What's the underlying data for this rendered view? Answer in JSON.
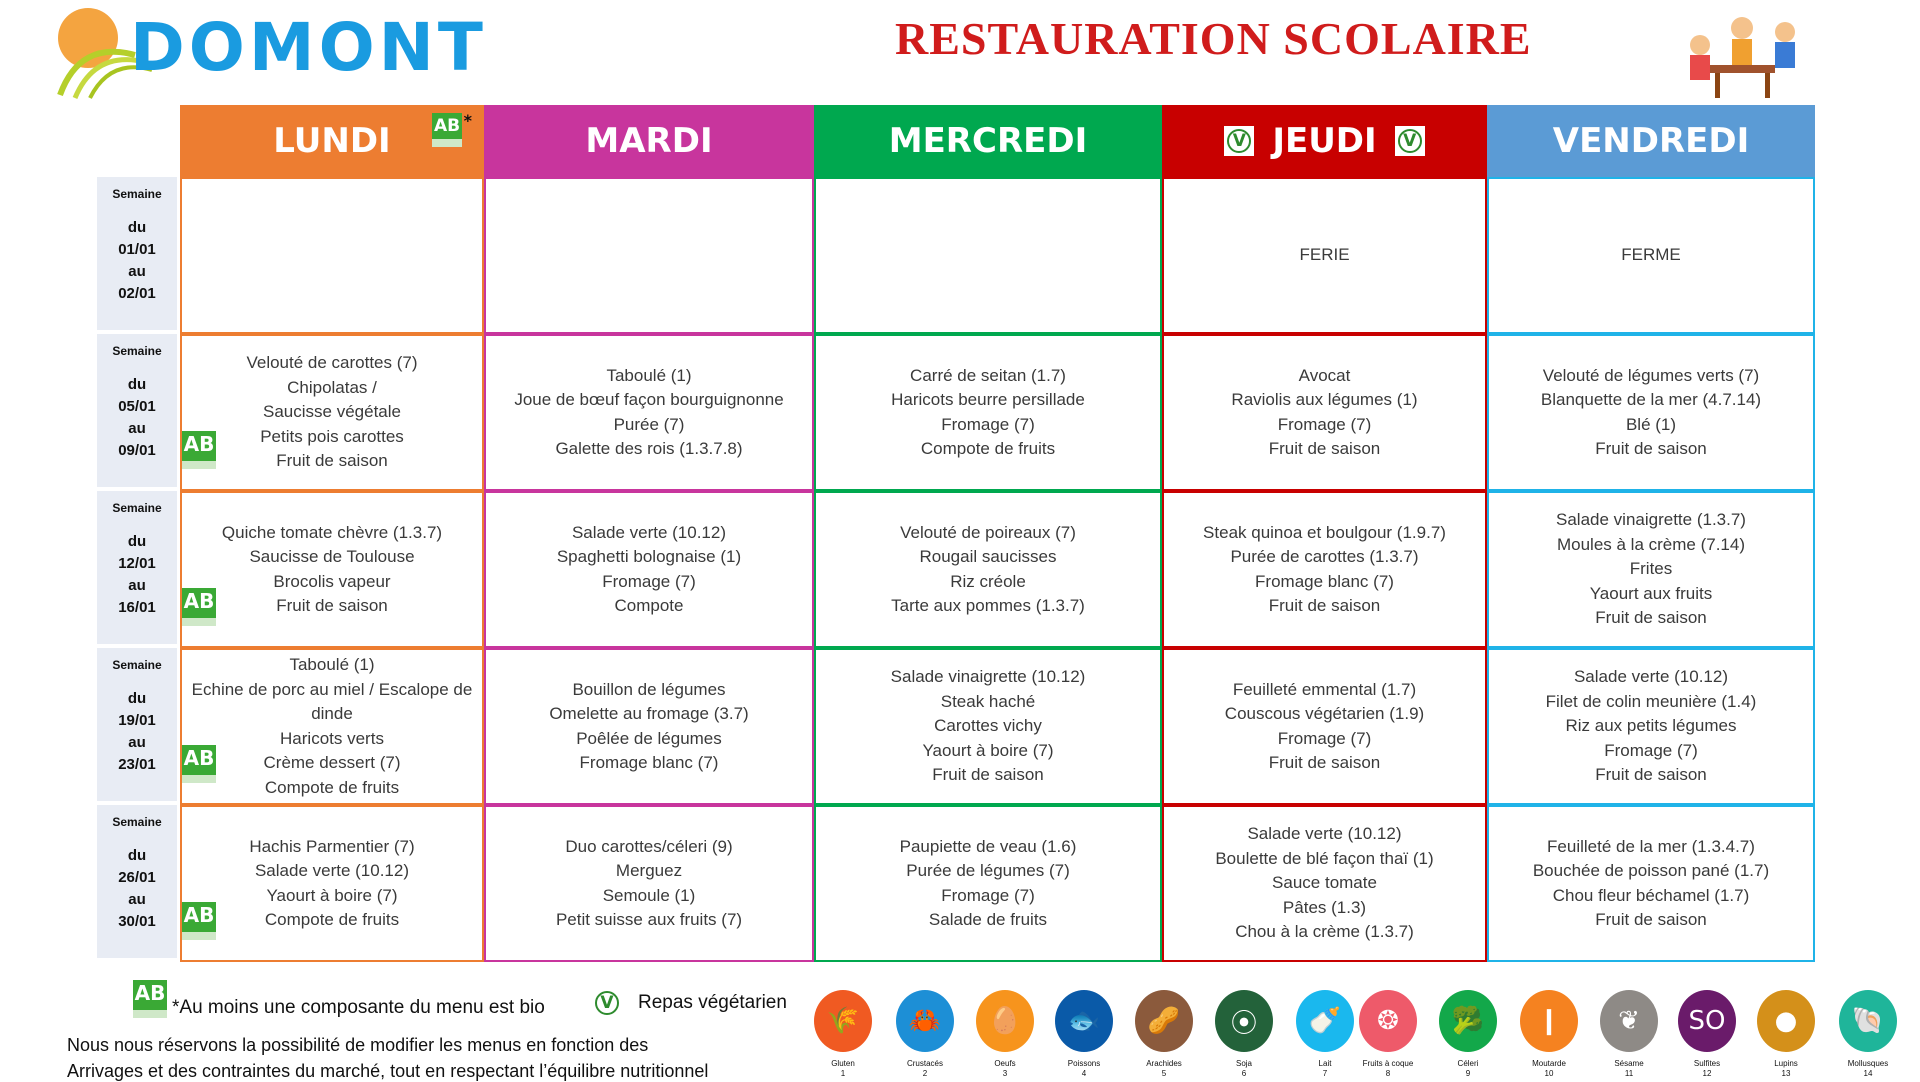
{
  "header": {
    "logo_text": "DOMONT",
    "title": "RESTAURATION SCOLAIRE"
  },
  "colors": {
    "lundi": "#ed7d31",
    "mardi": "#c8359d",
    "mercredi": "#00a84f",
    "jeudi": "#c80000",
    "vendredi": "#5b9bd5",
    "vendredi_border": "#1fb3e8",
    "title": "#d01c1c",
    "logo": "#1a9be0"
  },
  "days": [
    {
      "label": "LUNDI",
      "bio": true
    },
    {
      "label": "MARDI"
    },
    {
      "label": "MERCREDI"
    },
    {
      "label": "JEUDI",
      "vegetarian": true
    },
    {
      "label": "VENDREDI"
    }
  ],
  "bio_asterisk": "*",
  "weeks": [
    {
      "semaine": "Semaine",
      "du": "du",
      "start": "01/01",
      "au": "au",
      "end": "02/01",
      "bio": false,
      "menus": [
        [],
        [],
        [],
        [
          "FERIE"
        ],
        [
          "FERME"
        ]
      ]
    },
    {
      "semaine": "Semaine",
      "du": "du",
      "start": "05/01",
      "au": "au",
      "end": "09/01",
      "bio": true,
      "menus": [
        [
          "Velouté de carottes (7)",
          "Chipolatas /",
          "Saucisse végétale",
          "Petits pois carottes",
          "Fruit de saison"
        ],
        [
          "Taboulé (1)",
          "Joue de bœuf façon bourguignonne",
          "Purée (7)",
          "Galette des rois (1.3.7.8)"
        ],
        [
          "Carré de seitan (1.7)",
          "Haricots beurre persillade",
          "Fromage (7)",
          "Compote de fruits"
        ],
        [
          "Avocat",
          "Raviolis aux légumes (1)",
          "Fromage (7)",
          "Fruit de saison"
        ],
        [
          "Velouté de légumes verts (7)",
          "Blanquette de la mer (4.7.14)",
          "Blé (1)",
          "Fruit de saison"
        ]
      ]
    },
    {
      "semaine": "Semaine",
      "du": "du",
      "start": "12/01",
      "au": "au",
      "end": "16/01",
      "bio": true,
      "menus": [
        [
          "Quiche tomate chèvre (1.3.7)",
          "Saucisse de Toulouse",
          "Brocolis vapeur",
          "Fruit de saison"
        ],
        [
          "Salade verte (10.12)",
          "Spaghetti bolognaise (1)",
          "Fromage (7)",
          "Compote"
        ],
        [
          "Velouté de poireaux (7)",
          "Rougail saucisses",
          "Riz créole",
          "Tarte aux pommes (1.3.7)"
        ],
        [
          "Steak quinoa et boulgour (1.9.7)",
          "Purée de carottes (1.3.7)",
          "Fromage blanc (7)",
          "Fruit de saison"
        ],
        [
          "Salade vinaigrette (1.3.7)",
          "Moules à la crème (7.14)",
          "Frites",
          "Yaourt aux fruits",
          "Fruit de saison"
        ]
      ]
    },
    {
      "semaine": "Semaine",
      "du": "du",
      "start": "19/01",
      "au": "au",
      "end": "23/01",
      "bio": true,
      "menus": [
        [
          "Taboulé (1)",
          "Echine de porc au miel / Escalope de",
          "dinde",
          "Haricots verts",
          "Crème dessert (7)",
          "Compote de fruits"
        ],
        [
          "Bouillon de légumes",
          "Omelette au fromage (3.7)",
          "Poêlée de légumes",
          "Fromage blanc (7)"
        ],
        [
          "Salade vinaigrette (10.12)",
          "Steak haché",
          "Carottes vichy",
          "Yaourt à boire (7)",
          "Fruit de saison"
        ],
        [
          "Feuilleté emmental (1.7)",
          "Couscous végétarien (1.9)",
          "Fromage (7)",
          "Fruit de saison"
        ],
        [
          "Salade verte (10.12)",
          "Filet de colin meunière (1.4)",
          "Riz aux petits légumes",
          "Fromage (7)",
          "Fruit de saison"
        ]
      ]
    },
    {
      "semaine": "Semaine",
      "du": "du",
      "start": "26/01",
      "au": "au",
      "end": "30/01",
      "bio": true,
      "menus": [
        [
          "Hachis Parmentier (7)",
          "Salade verte (10.12)",
          "Yaourt à boire (7)",
          "Compote de fruits"
        ],
        [
          "Duo carottes/céleri (9)",
          "Merguez",
          "Semoule (1)",
          "Petit suisse aux fruits (7)"
        ],
        [
          "Paupiette de veau (1.6)",
          "Purée de légumes (7)",
          "Fromage (7)",
          "Salade de fruits"
        ],
        [
          "Salade verte (10.12)",
          "Boulette de blé façon thaï (1)",
          "Sauce tomate",
          "Pâtes (1.3)",
          "Chou à la crème (1.3.7)"
        ],
        [
          "Feuilleté de la mer (1.3.4.7)",
          "Bouchée de poisson pané (1.7)",
          "Chou fleur béchamel (1.7)",
          "Fruit de saison"
        ]
      ]
    }
  ],
  "legend": {
    "bio_text": "*Au moins une composante du menu est bio",
    "veg_text": "Repas végétarien",
    "note_line1": "Nous nous réservons la possibilité de modifier les menus en fonction des",
    "note_line2": "Arrivages et des contraintes du marché, tout en respectant l’équilibre nutritionnel"
  },
  "allergens": [
    {
      "name": "Gluten",
      "num": "1",
      "color": "#f05a22",
      "icon": "wheat-icon",
      "glyph": "🌾"
    },
    {
      "name": "Crustacés",
      "num": "2",
      "color": "#1d8fd6",
      "icon": "crab-icon",
      "glyph": "🦀"
    },
    {
      "name": "Oeufs",
      "num": "3",
      "color": "#f7941d",
      "icon": "egg-icon",
      "glyph": "🥚"
    },
    {
      "name": "Poissons",
      "num": "4",
      "color": "#0a5aa8",
      "icon": "fish-icon",
      "glyph": "🐟"
    },
    {
      "name": "Arachides",
      "num": "5",
      "color": "#8b5a3c",
      "icon": "peanut-icon",
      "glyph": "🥜"
    },
    {
      "name": "Soja",
      "num": "6",
      "color": "#23623a",
      "icon": "soy-icon",
      "glyph": "⦿"
    },
    {
      "name": "Lait",
      "num": "7",
      "color": "#1ab8ee",
      "icon": "milk-bottle-icon",
      "glyph": "🍼"
    },
    {
      "name": "Fruits à coque",
      "num": "8",
      "color": "#ee5a6a",
      "icon": "nut-icon",
      "glyph": "❂"
    },
    {
      "name": "Céleri",
      "num": "9",
      "color": "#13a84a",
      "icon": "celery-icon",
      "glyph": "🥦"
    },
    {
      "name": "Moutarde",
      "num": "10",
      "color": "#f58220",
      "icon": "mustard-icon",
      "glyph": "❙"
    },
    {
      "name": "Sésame",
      "num": "11",
      "color": "#8e8a86",
      "icon": "sesame-icon",
      "glyph": "❦"
    },
    {
      "name": "Sulfites",
      "num": "12",
      "color": "#6a1b6a",
      "icon": "sulfites-icon",
      "glyph": "SO"
    },
    {
      "name": "Lupins",
      "num": "13",
      "color": "#d4901a",
      "icon": "lupin-icon",
      "glyph": "●"
    },
    {
      "name": "Mollusques",
      "num": "14",
      "color": "#1fb59a",
      "icon": "shell-icon",
      "glyph": "🐚"
    }
  ]
}
